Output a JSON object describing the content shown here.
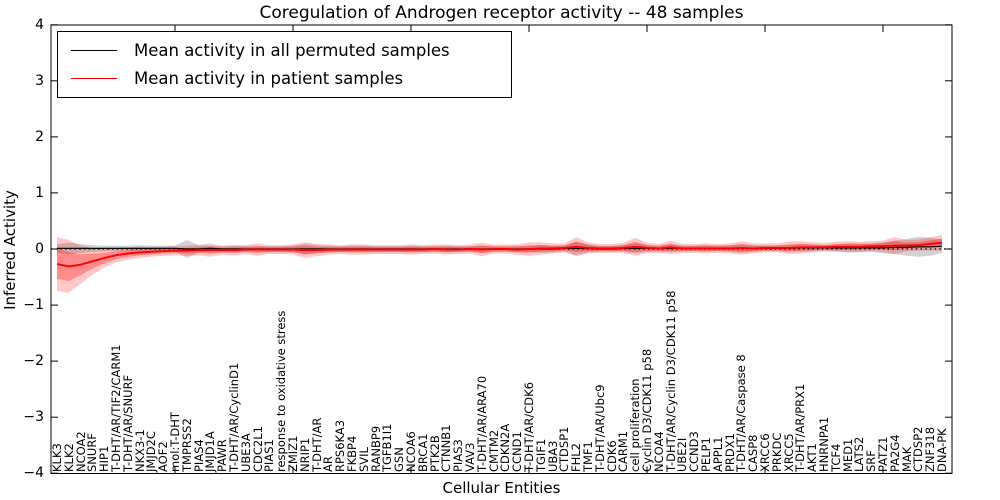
{
  "figure": {
    "title": "Coregulation of Androgen receptor activity -- 48 samples",
    "xlabel": "Cellular Entities",
    "ylabel": "Inferred Activity"
  },
  "legend": {
    "items": [
      {
        "label": "Mean activity in all permuted samples",
        "color": "#000000"
      },
      {
        "label": "Mean activity in patient samples",
        "color": "#ff0000"
      }
    ]
  },
  "chart_data": {
    "type": "line",
    "title": "Coregulation of Androgen receptor activity -- 48 samples",
    "xlabel": "Cellular Entities",
    "ylabel": "Inferred Activity",
    "ylim": [
      -4,
      4
    ],
    "yticks": [
      4,
      3,
      2,
      1,
      0,
      -1,
      -2,
      -3,
      -4
    ],
    "ytick_labels": [
      "4",
      "3",
      "2",
      "1",
      "0",
      "−1",
      "−2",
      "−3",
      "−4"
    ],
    "x_major_tick_step": 10,
    "grid": false,
    "legend_position": "upper left",
    "zero_line": {
      "style": "dotted",
      "color": "#000000",
      "y": 0
    },
    "colors": {
      "permuted_line": "#000000",
      "patient_line": "#ff0000",
      "permuted_band": "rgba(128,128,128,0.35)",
      "patient_band": "rgba(255,0,0,0.22)",
      "patient_band_inner": "rgba(255,0,0,0.30)"
    },
    "categories": [
      "KLK3",
      "KLK2",
      "NCOA2",
      "SNURF",
      "HIP1",
      "T-DHT/AR/TIF2/CARM1",
      "T-DHT/AR/SNURF",
      "NKX3-1",
      "JMJD2C",
      "AOF2",
      "mol:T-DHT",
      "TMPRSS2",
      "PIAS4",
      "JMJD1A",
      "PAWR",
      "T-DHT/AR/CyclinD1",
      "UBE3A",
      "CDC2L1",
      "PIAS1",
      "response to oxidative stress",
      "ZMIZ1",
      "NRIP1",
      "T-DHT/AR",
      "AR",
      "RPS6KA3",
      "FKBP4",
      "SVIL",
      "RANBP9",
      "TGFB1I1",
      "GSN",
      "NCOA6",
      "BRCA1",
      "PTK2B",
      "CTNNB1",
      "PIAS3",
      "VAV3",
      "T-DHT/AR/ARA70",
      "CMTM2",
      "CDKN2A",
      "CCND1",
      "T-DHT/AR/CDK6",
      "TGIF1",
      "UBA3",
      "CTDSP1",
      "FHL2",
      "TMF1",
      "T-DHT/AR/Ubc9",
      "CDK6",
      "CARM1",
      "cell proliferation",
      "Cyclin D3/CDK11 p58",
      "NCOA4",
      "T-DHT/AR/Cyclin D3/CDK11 p58",
      "UBE2I",
      "CCND3",
      "PELP1",
      "APPL1",
      "PRDX1",
      "T-DHT/AR/Caspase 8",
      "CASP8",
      "XRCC6",
      "PRKDC",
      "XRCC5",
      "T-DHT/AR/PRX1",
      "AKT1",
      "HNRNPA1",
      "TCF4",
      "MED1",
      "LATS2",
      "SRF",
      "PATZ1",
      "PA2G4",
      "MAK",
      "CTDSP2",
      "ZNF318",
      "DNA-PK"
    ],
    "series": [
      {
        "name": "Mean activity in all permuted samples",
        "values": [
          0.01,
          0.01,
          0.01,
          0.01,
          0.01,
          0.01,
          0.01,
          0.01,
          0.01,
          0.01,
          0.01,
          0.0,
          0.0,
          0.01,
          0.0,
          0.0,
          0.0,
          0.0,
          0.0,
          0.0,
          0.0,
          0.0,
          0.0,
          0.0,
          0.0,
          0.0,
          0.0,
          0.0,
          0.0,
          0.0,
          0.0,
          0.0,
          0.0,
          0.0,
          0.0,
          0.0,
          0.0,
          0.0,
          0.0,
          0.0,
          0.0,
          0.0,
          0.0,
          0.01,
          0.01,
          0.01,
          0.0,
          0.0,
          0.01,
          0.01,
          0.01,
          0.01,
          0.01,
          0.01,
          0.01,
          0.01,
          0.01,
          0.01,
          0.01,
          0.01,
          0.01,
          0.01,
          0.01,
          0.02,
          0.02,
          0.02,
          0.02,
          0.02,
          0.02,
          0.02,
          0.02,
          0.03,
          0.03,
          0.04,
          0.04,
          0.05
        ],
        "std": [
          0.08,
          0.1,
          0.08,
          0.06,
          0.05,
          0.05,
          0.05,
          0.06,
          0.05,
          0.05,
          0.05,
          0.16,
          0.07,
          0.05,
          0.05,
          0.06,
          0.05,
          0.05,
          0.05,
          0.05,
          0.06,
          0.09,
          0.07,
          0.06,
          0.05,
          0.06,
          0.06,
          0.05,
          0.05,
          0.05,
          0.06,
          0.05,
          0.05,
          0.06,
          0.05,
          0.05,
          0.07,
          0.05,
          0.05,
          0.06,
          0.05,
          0.07,
          0.06,
          0.05,
          0.12,
          0.07,
          0.05,
          0.05,
          0.06,
          0.09,
          0.06,
          0.05,
          0.07,
          0.05,
          0.05,
          0.06,
          0.05,
          0.06,
          0.08,
          0.06,
          0.05,
          0.05,
          0.06,
          0.07,
          0.06,
          0.05,
          0.06,
          0.08,
          0.08,
          0.07,
          0.1,
          0.12,
          0.15,
          0.18,
          0.16,
          0.12
        ]
      },
      {
        "name": "Mean activity in patient samples",
        "values": [
          -0.27,
          -0.31,
          -0.28,
          -0.22,
          -0.16,
          -0.11,
          -0.08,
          -0.06,
          -0.05,
          -0.04,
          -0.03,
          -0.03,
          -0.02,
          -0.02,
          -0.02,
          -0.02,
          -0.01,
          -0.01,
          -0.01,
          -0.01,
          -0.01,
          -0.02,
          -0.02,
          -0.01,
          -0.01,
          -0.01,
          -0.01,
          -0.01,
          -0.01,
          -0.01,
          -0.01,
          -0.01,
          0.0,
          -0.01,
          -0.01,
          0.0,
          -0.01,
          0.0,
          0.0,
          -0.01,
          0.0,
          0.01,
          0.01,
          0.02,
          0.04,
          0.02,
          0.01,
          0.01,
          0.02,
          0.04,
          0.02,
          0.01,
          0.03,
          0.01,
          0.01,
          0.01,
          0.01,
          0.01,
          0.02,
          0.01,
          0.02,
          0.02,
          0.02,
          0.03,
          0.03,
          0.03,
          0.04,
          0.04,
          0.04,
          0.05,
          0.05,
          0.06,
          0.06,
          0.07,
          0.09,
          0.11
        ],
        "std": [
          0.48,
          0.47,
          0.34,
          0.24,
          0.17,
          0.13,
          0.11,
          0.1,
          0.09,
          0.08,
          0.08,
          0.09,
          0.09,
          0.12,
          0.08,
          0.09,
          0.08,
          0.11,
          0.08,
          0.08,
          0.09,
          0.14,
          0.11,
          0.09,
          0.08,
          0.09,
          0.09,
          0.08,
          0.08,
          0.08,
          0.09,
          0.08,
          0.08,
          0.09,
          0.08,
          0.08,
          0.12,
          0.08,
          0.08,
          0.09,
          0.12,
          0.11,
          0.09,
          0.08,
          0.17,
          0.1,
          0.08,
          0.08,
          0.09,
          0.16,
          0.09,
          0.08,
          0.12,
          0.08,
          0.08,
          0.09,
          0.08,
          0.09,
          0.12,
          0.09,
          0.08,
          0.08,
          0.11,
          0.11,
          0.09,
          0.08,
          0.09,
          0.1,
          0.09,
          0.09,
          0.1,
          0.15,
          0.1,
          0.1,
          0.12,
          0.14
        ]
      }
    ]
  }
}
